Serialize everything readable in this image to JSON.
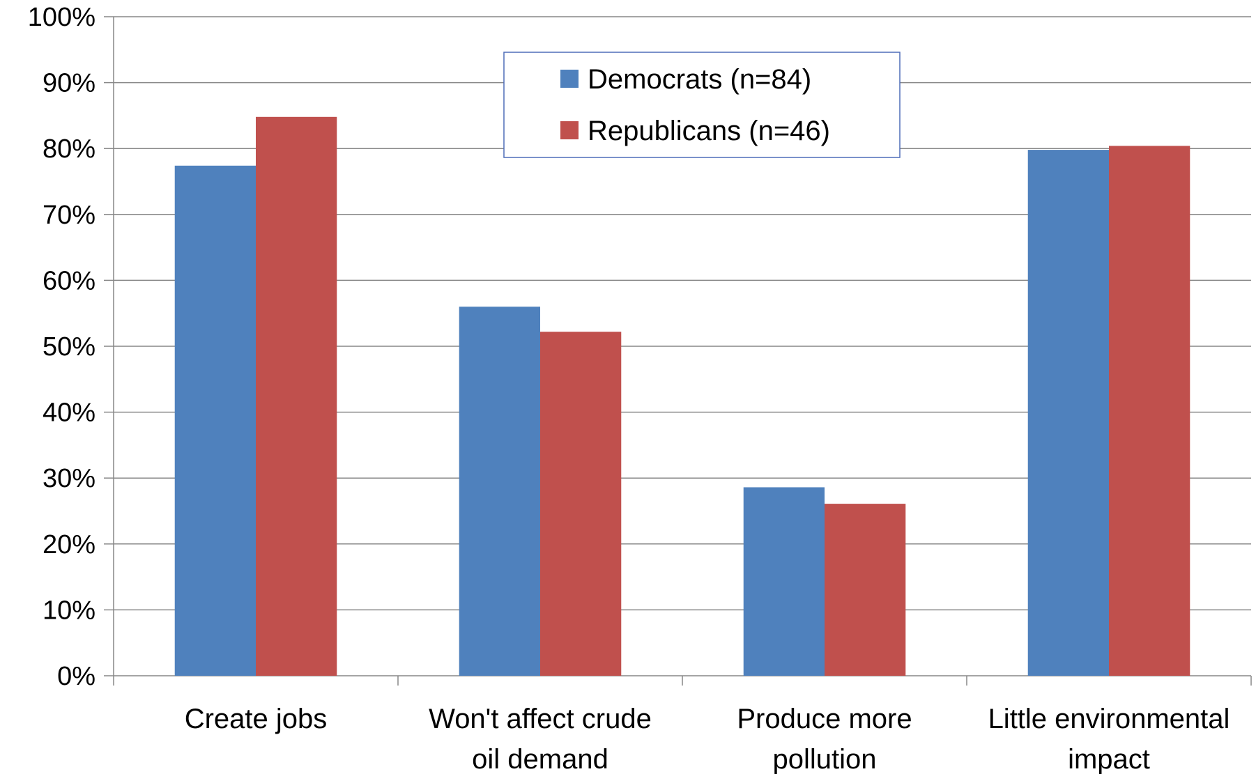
{
  "chart_data": {
    "type": "bar",
    "categories": [
      [
        "Create jobs"
      ],
      [
        "Won't affect crude",
        "oil demand"
      ],
      [
        "Produce more",
        "pollution"
      ],
      [
        "Little environmental",
        "impact"
      ]
    ],
    "series": [
      {
        "name": "Democrats (n=84)",
        "color": "#4F81BD",
        "values": [
          77.4,
          56.0,
          28.6,
          79.8
        ]
      },
      {
        "name": "Republicans (n=46)",
        "color": "#C0504D",
        "values": [
          84.8,
          52.2,
          26.1,
          80.4
        ]
      }
    ],
    "title": "",
    "xlabel": "",
    "ylabel": "",
    "ylim": [
      0,
      100
    ],
    "y_ticks": [
      0,
      10,
      20,
      30,
      40,
      50,
      60,
      70,
      80,
      90,
      100
    ],
    "y_tick_suffix": "%",
    "grid": true,
    "legend_position": "top-center"
  }
}
